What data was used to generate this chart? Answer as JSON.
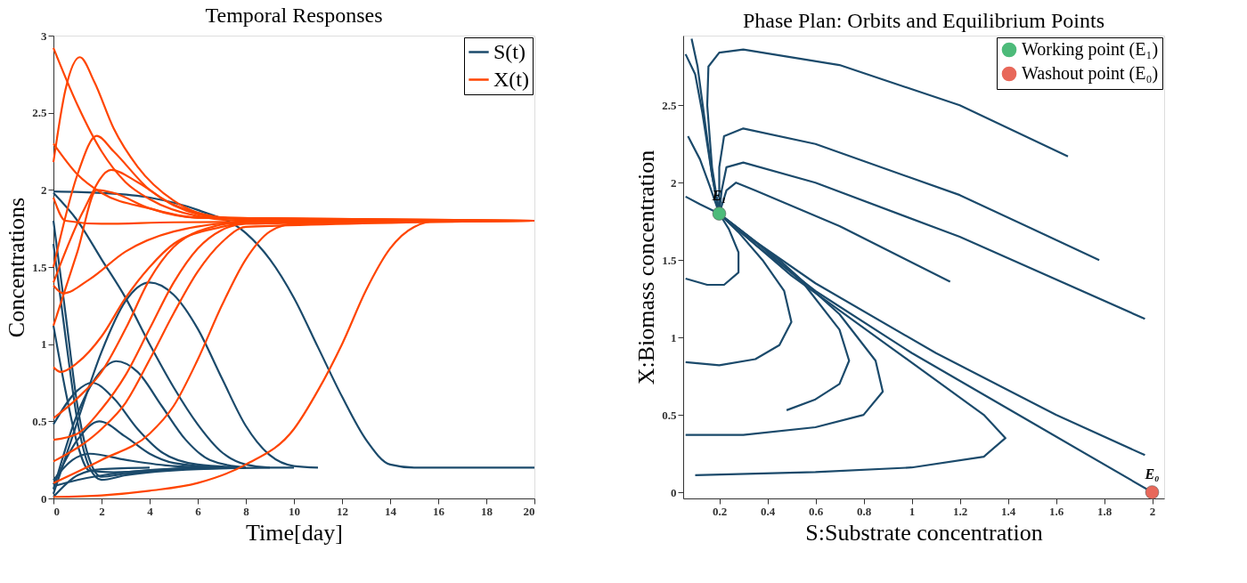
{
  "chart_data": [
    {
      "type": "line",
      "title": "Temporal Responses",
      "xlabel": "Time[day]",
      "ylabel": "Concentrations",
      "xlim": [
        0,
        20
      ],
      "xticks": [
        0,
        2,
        4,
        6,
        8,
        10,
        12,
        14,
        16,
        18,
        20
      ],
      "ylim": [
        0,
        3
      ],
      "yticks": [
        0,
        0.5,
        1,
        1.5,
        2,
        2.5,
        3
      ],
      "grid": false,
      "legend": "top right",
      "series": [
        {
          "name": "S(t)",
          "color": "#1b4a6b",
          "x": [
            0,
            2,
            4,
            6,
            8,
            9,
            10,
            11,
            12,
            13,
            14,
            15,
            20
          ],
          "values": [
            1.99,
            1.98,
            1.95,
            1.87,
            1.72,
            1.55,
            1.3,
            0.98,
            0.66,
            0.38,
            0.22,
            0.2,
            0.2
          ]
        },
        {
          "color": "#1b4a6b",
          "x": [
            0,
            1,
            2,
            3,
            4,
            5,
            6,
            7,
            8,
            9,
            10
          ],
          "values": [
            1.98,
            1.8,
            1.55,
            1.3,
            1.0,
            0.72,
            0.48,
            0.3,
            0.22,
            0.2,
            0.2
          ]
        },
        {
          "color": "#1b4a6b",
          "x": [
            0,
            1,
            2,
            3,
            4,
            5,
            6,
            7,
            8,
            9,
            10,
            11
          ],
          "values": [
            0.03,
            0.5,
            0.95,
            1.28,
            1.4,
            1.32,
            1.1,
            0.78,
            0.47,
            0.28,
            0.21,
            0.2
          ]
        },
        {
          "color": "#1b4a6b",
          "x": [
            0,
            1,
            2,
            2.6,
            3.5,
            4.5,
            5.5,
            6.5,
            8
          ],
          "values": [
            0.06,
            0.55,
            0.83,
            0.89,
            0.82,
            0.6,
            0.38,
            0.25,
            0.2
          ]
        },
        {
          "color": "#1b4a6b",
          "x": [
            0,
            1,
            1.6,
            2.5,
            3.5,
            4.5,
            6,
            8
          ],
          "values": [
            0.48,
            0.7,
            0.75,
            0.65,
            0.45,
            0.3,
            0.22,
            0.2
          ]
        },
        {
          "color": "#1b4a6b",
          "x": [
            0,
            1,
            1.9,
            3,
            4,
            5,
            7
          ],
          "values": [
            0.09,
            0.38,
            0.5,
            0.4,
            0.29,
            0.23,
            0.2
          ]
        },
        {
          "color": "#1b4a6b",
          "x": [
            0,
            0.8,
            1.5,
            3,
            5,
            7
          ],
          "values": [
            0.12,
            0.25,
            0.29,
            0.25,
            0.21,
            0.2
          ]
        },
        {
          "color": "#1b4a6b",
          "x": [
            0,
            0.5,
            1,
            1.5,
            2,
            3,
            5,
            8
          ],
          "values": [
            1.8,
            1.2,
            0.6,
            0.25,
            0.14,
            0.16,
            0.19,
            0.2
          ]
        },
        {
          "color": "#1b4a6b",
          "x": [
            0,
            0.5,
            1,
            1.5,
            2,
            3,
            6,
            9
          ],
          "values": [
            1.65,
            1.05,
            0.5,
            0.2,
            0.12,
            0.15,
            0.19,
            0.2
          ]
        },
        {
          "color": "#1b4a6b",
          "x": [
            0,
            0.5,
            1,
            1.5,
            2.5,
            5,
            8
          ],
          "values": [
            1.12,
            0.7,
            0.35,
            0.18,
            0.17,
            0.19,
            0.2
          ]
        },
        {
          "color": "#1b4a6b",
          "x": [
            0,
            1,
            2,
            4
          ],
          "values": [
            0.01,
            0.15,
            0.19,
            0.2
          ]
        },
        {
          "color": "#1b4a6b",
          "x": [
            0,
            1,
            3,
            6
          ],
          "values": [
            0.08,
            0.12,
            0.17,
            0.2
          ]
        },
        {
          "name": "X(t)",
          "color": "#ff4500",
          "x": [
            0,
            1,
            2,
            3,
            4,
            6,
            8,
            20
          ],
          "values": [
            2.92,
            2.55,
            2.25,
            2.05,
            1.94,
            1.83,
            1.8,
            1.8
          ]
        },
        {
          "color": "#ff4500",
          "x": [
            0,
            0.5,
            1.1,
            1.7,
            2.5,
            3.5,
            5,
            7,
            10,
            20
          ],
          "values": [
            2.18,
            2.65,
            2.86,
            2.7,
            2.4,
            2.15,
            1.93,
            1.82,
            1.8,
            1.8
          ]
        },
        {
          "color": "#ff4500",
          "x": [
            0,
            1,
            1.8,
            2.5,
            4,
            6,
            8,
            20
          ],
          "values": [
            1.5,
            2.1,
            2.35,
            2.25,
            2.0,
            1.85,
            1.81,
            1.8
          ]
        },
        {
          "color": "#ff4500",
          "x": [
            0,
            1.2,
            2.4,
            3.5,
            5,
            7,
            20
          ],
          "values": [
            1.4,
            1.85,
            2.13,
            2.05,
            1.9,
            1.82,
            1.8
          ]
        },
        {
          "color": "#ff4500",
          "x": [
            0,
            1,
            2,
            4,
            6,
            20
          ],
          "values": [
            2.3,
            2.1,
            1.98,
            1.88,
            1.82,
            1.8
          ]
        },
        {
          "color": "#ff4500",
          "x": [
            0,
            0.5,
            2,
            5,
            20
          ],
          "values": [
            1.95,
            1.8,
            1.78,
            1.79,
            1.8
          ]
        },
        {
          "color": "#ff4500",
          "x": [
            0,
            0.4,
            1.5,
            3,
            5,
            8,
            20
          ],
          "values": [
            1.38,
            1.33,
            1.42,
            1.6,
            1.73,
            1.79,
            1.8
          ]
        },
        {
          "color": "#ff4500",
          "x": [
            0,
            1,
            1.8,
            2.5,
            4,
            6,
            20
          ],
          "values": [
            1.12,
            1.6,
            2.0,
            1.98,
            1.88,
            1.82,
            1.8
          ]
        },
        {
          "color": "#ff4500",
          "x": [
            0,
            0.3,
            1,
            2,
            3,
            4,
            5,
            7,
            9,
            20
          ],
          "values": [
            0.85,
            0.82,
            0.88,
            1.05,
            1.3,
            1.5,
            1.65,
            1.76,
            1.8,
            1.8
          ]
        },
        {
          "color": "#ff4500",
          "x": [
            0,
            1,
            2,
            3,
            4,
            5,
            6,
            8,
            20
          ],
          "values": [
            0.52,
            0.65,
            0.82,
            1.1,
            1.42,
            1.63,
            1.73,
            1.79,
            1.8
          ]
        },
        {
          "color": "#ff4500",
          "x": [
            0,
            1,
            2,
            3,
            4,
            5,
            6,
            7,
            8,
            20
          ],
          "values": [
            0.38,
            0.42,
            0.58,
            0.8,
            1.1,
            1.4,
            1.62,
            1.74,
            1.78,
            1.8
          ]
        },
        {
          "color": "#ff4500",
          "x": [
            0,
            2,
            3,
            4,
            5,
            6,
            7,
            8,
            20
          ],
          "values": [
            0.24,
            0.45,
            0.62,
            0.9,
            1.2,
            1.47,
            1.66,
            1.76,
            1.8
          ]
        },
        {
          "color": "#ff4500",
          "x": [
            0,
            2,
            4,
            5,
            6,
            7,
            8,
            9,
            10,
            20
          ],
          "values": [
            0.1,
            0.25,
            0.42,
            0.6,
            0.9,
            1.25,
            1.55,
            1.73,
            1.78,
            1.8
          ]
        },
        {
          "color": "#ff4500",
          "x": [
            0,
            2,
            4,
            6,
            8,
            10,
            11,
            12,
            13,
            14,
            15,
            16,
            20
          ],
          "values": [
            0.01,
            0.02,
            0.05,
            0.1,
            0.22,
            0.45,
            0.7,
            1.0,
            1.35,
            1.62,
            1.76,
            1.8,
            1.8
          ]
        }
      ]
    },
    {
      "type": "line",
      "title": "Phase Plan: Orbits and Equilibrium Points",
      "xlabel": "S:Substrate concentration",
      "ylabel": "X:Biomass concentration",
      "xlim": [
        0.05,
        2.05
      ],
      "xticks": [
        0.2,
        0.4,
        0.6,
        0.8,
        1,
        1.2,
        1.4,
        1.6,
        1.8,
        2
      ],
      "ylim": [
        -0.04,
        2.95
      ],
      "yticks": [
        0,
        0.5,
        1,
        1.5,
        2,
        2.5
      ],
      "grid": false,
      "legend": "top right",
      "annotations": [
        {
          "text": "E₁",
          "x": 0.2,
          "y": 1.8
        },
        {
          "text": "E₀",
          "x": 2,
          "y": 0
        }
      ],
      "series": [
        {
          "color": "#1b4a6b",
          "x": [
            1.65,
            1.2,
            0.7,
            0.3,
            0.2,
            0.155,
            0.15,
            0.17,
            0.2
          ],
          "values": [
            2.17,
            2.5,
            2.76,
            2.86,
            2.84,
            2.75,
            2.5,
            2.1,
            1.8
          ]
        },
        {
          "color": "#1b4a6b",
          "x": [
            1.78,
            1.2,
            0.6,
            0.3,
            0.22,
            0.2,
            0.2
          ],
          "values": [
            1.5,
            1.92,
            2.25,
            2.35,
            2.3,
            2.1,
            1.8
          ]
        },
        {
          "color": "#1b4a6b",
          "x": [
            1.97,
            1.2,
            0.6,
            0.3,
            0.23,
            0.21,
            0.2
          ],
          "values": [
            1.12,
            1.65,
            2.0,
            2.13,
            2.1,
            1.95,
            1.8
          ]
        },
        {
          "color": "#1b4a6b",
          "x": [
            1.16,
            0.7,
            0.35,
            0.27,
            0.23,
            0.2
          ],
          "values": [
            1.36,
            1.72,
            1.95,
            2.0,
            1.95,
            1.8
          ]
        },
        {
          "color": "#1b4a6b",
          "x": [
            0.085,
            0.11,
            0.14,
            0.17,
            0.2
          ],
          "values": [
            2.93,
            2.75,
            2.4,
            2.05,
            1.8
          ]
        },
        {
          "color": "#1b4a6b",
          "x": [
            0.06,
            0.1,
            0.13,
            0.17,
            0.2
          ],
          "values": [
            2.83,
            2.7,
            2.45,
            2.05,
            1.8
          ]
        },
        {
          "color": "#1b4a6b",
          "x": [
            0.07,
            0.12,
            0.16,
            0.2
          ],
          "values": [
            2.3,
            2.15,
            1.98,
            1.8
          ]
        },
        {
          "color": "#1b4a6b",
          "x": [
            0.06,
            0.12,
            0.2
          ],
          "values": [
            1.91,
            1.86,
            1.8
          ]
        },
        {
          "color": "#1b4a6b",
          "x": [
            0.06,
            0.15,
            0.22,
            0.28,
            0.28,
            0.24,
            0.2
          ],
          "values": [
            1.38,
            1.34,
            1.34,
            1.42,
            1.55,
            1.7,
            1.8
          ]
        },
        {
          "color": "#1b4a6b",
          "x": [
            0.06,
            0.2,
            0.35,
            0.45,
            0.5,
            0.47,
            0.38,
            0.28,
            0.2
          ],
          "values": [
            0.84,
            0.82,
            0.86,
            0.95,
            1.1,
            1.3,
            1.5,
            1.68,
            1.8
          ]
        },
        {
          "color": "#1b4a6b",
          "x": [
            0.48,
            0.6,
            0.7,
            0.74,
            0.7,
            0.55,
            0.38,
            0.2
          ],
          "values": [
            0.53,
            0.6,
            0.7,
            0.85,
            1.05,
            1.35,
            1.58,
            1.8
          ]
        },
        {
          "color": "#1b4a6b",
          "x": [
            0.06,
            0.3,
            0.6,
            0.8,
            0.88,
            0.85,
            0.7,
            0.45,
            0.2
          ],
          "values": [
            0.37,
            0.37,
            0.42,
            0.5,
            0.65,
            0.85,
            1.15,
            1.5,
            1.8
          ]
        },
        {
          "color": "#1b4a6b",
          "x": [
            0.1,
            0.6,
            1.0,
            1.3,
            1.39,
            1.3,
            0.9,
            0.5,
            0.2
          ],
          "values": [
            0.11,
            0.13,
            0.16,
            0.23,
            0.35,
            0.5,
            0.95,
            1.4,
            1.8
          ]
        },
        {
          "color": "#1b4a6b",
          "x": [
            2.0,
            1.5,
            1.0,
            0.6,
            0.35,
            0.2
          ],
          "values": [
            0.0,
            0.45,
            0.9,
            1.3,
            1.6,
            1.8
          ]
        },
        {
          "color": "#1b4a6b",
          "x": [
            1.97,
            1.6,
            1.1,
            0.6,
            0.35,
            0.2
          ],
          "values": [
            0.24,
            0.5,
            0.9,
            1.35,
            1.62,
            1.8
          ]
        },
        {
          "type": "scatter",
          "name": "Working point (E₁)",
          "color": "#4dbb7a",
          "x": [
            0.2
          ],
          "values": [
            1.8
          ]
        },
        {
          "type": "scatter",
          "name": "Washout point (E₀)",
          "color": "#e8685a",
          "x": [
            2
          ],
          "values": [
            0
          ]
        }
      ]
    }
  ]
}
